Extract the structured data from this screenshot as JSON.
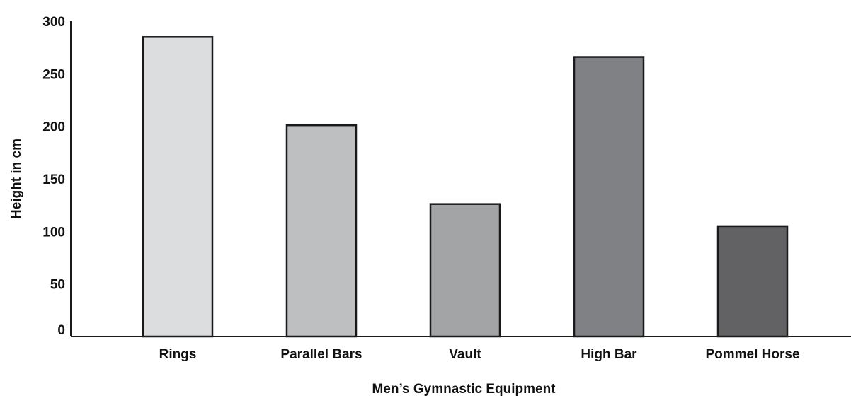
{
  "chart_data": {
    "type": "bar",
    "categories": [
      "Rings",
      "Parallel Bars",
      "Vault",
      "High Bar",
      "Pommel Horse"
    ],
    "values": [
      285,
      201,
      126,
      266,
      105
    ],
    "colors": [
      "#dcdddf",
      "#bebfc1",
      "#a3a4a6",
      "#808184",
      "#626264"
    ],
    "xlabel": "Men’s Gymnastic Equipment",
    "ylabel": "Height in cm",
    "ylim": [
      0,
      300
    ],
    "yticks": [
      0,
      50,
      100,
      150,
      200,
      250,
      300
    ],
    "grid": false
  }
}
